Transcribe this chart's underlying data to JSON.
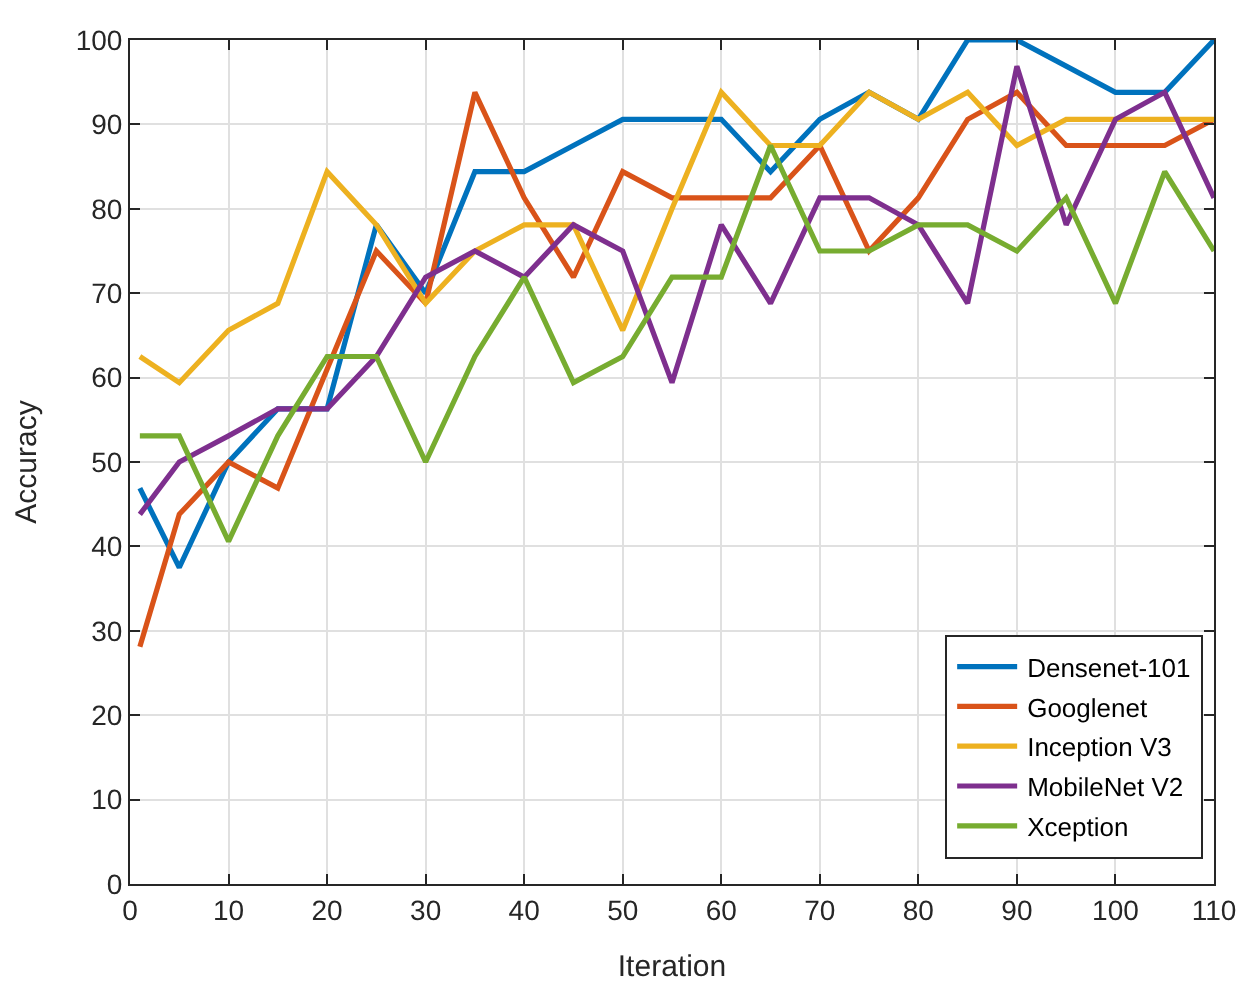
{
  "chart_data": {
    "type": "line",
    "xlabel": "Iteration",
    "ylabel": "Accuracy",
    "x": [
      1,
      5,
      10,
      15,
      20,
      25,
      30,
      35,
      40,
      45,
      50,
      55,
      60,
      65,
      70,
      75,
      80,
      85,
      90,
      95,
      100,
      105,
      110
    ],
    "series": [
      {
        "name": "Densenet-101",
        "color": "#0072bd",
        "values": [
          46.9,
          37.5,
          50,
          56.3,
          56.3,
          78.1,
          70,
          84.4,
          84.4,
          87.5,
          90.6,
          90.6,
          90.6,
          84.4,
          90.6,
          93.8,
          90.6,
          100,
          100,
          96.9,
          93.8,
          93.8,
          100
        ]
      },
      {
        "name": "Googlenet",
        "color": "#d95319",
        "values": [
          28.1,
          43.8,
          50,
          46.9,
          61,
          75,
          68.8,
          93.8,
          81.3,
          71.9,
          84.4,
          81.3,
          81.3,
          81.3,
          87.5,
          75,
          81.3,
          90.6,
          93.8,
          87.5,
          87.5,
          87.5,
          90.6
        ]
      },
      {
        "name": "Inception V3",
        "color": "#edb120",
        "values": [
          62.5,
          59.4,
          65.6,
          68.8,
          84.4,
          78.1,
          68.8,
          75,
          78.1,
          78.1,
          65.6,
          80,
          93.8,
          87.5,
          87.5,
          93.8,
          90.6,
          93.8,
          87.5,
          90.6,
          90.6,
          90.6,
          90.6
        ]
      },
      {
        "name": "MobileNet V2",
        "color": "#7e2f8e",
        "values": [
          43.8,
          50,
          53.1,
          56.3,
          56.3,
          62.5,
          71.9,
          75,
          71.9,
          78.1,
          75,
          59.4,
          78.1,
          68.8,
          81.3,
          81.3,
          78.1,
          68.8,
          96.9,
          78.1,
          90.6,
          93.8,
          81.3
        ]
      },
      {
        "name": "Xception",
        "color": "#77ac30",
        "values": [
          53.1,
          53.1,
          40.6,
          53.1,
          62.5,
          62.5,
          50,
          62.5,
          71.9,
          59.4,
          62.5,
          71.9,
          71.9,
          87.5,
          75,
          75,
          78.1,
          78.1,
          75,
          81.3,
          68.8,
          84.4,
          75
        ]
      }
    ],
    "xlim": [
      0,
      110
    ],
    "xticks": [
      0,
      10,
      20,
      30,
      40,
      50,
      60,
      70,
      80,
      90,
      100,
      110
    ],
    "ylim": [
      0,
      100
    ],
    "yticks": [
      0,
      10,
      20,
      30,
      40,
      50,
      60,
      70,
      80,
      90,
      100
    ],
    "grid": true,
    "legend": "bottom right",
    "marker": "none",
    "line_style": "solid"
  }
}
